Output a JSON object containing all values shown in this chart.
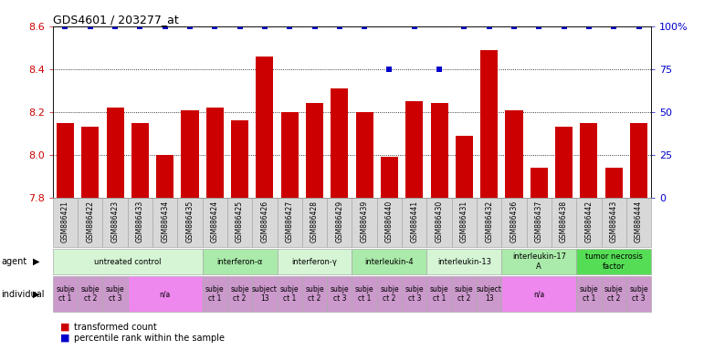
{
  "title": "GDS4601 / 203277_at",
  "samples": [
    "GSM886421",
    "GSM886422",
    "GSM886423",
    "GSM886433",
    "GSM886434",
    "GSM886435",
    "GSM886424",
    "GSM886425",
    "GSM886426",
    "GSM886427",
    "GSM886428",
    "GSM886429",
    "GSM886439",
    "GSM886440",
    "GSM886441",
    "GSM886430",
    "GSM886431",
    "GSM886432",
    "GSM886436",
    "GSM886437",
    "GSM886438",
    "GSM886442",
    "GSM886443",
    "GSM886444"
  ],
  "bar_values": [
    8.15,
    8.13,
    8.22,
    8.15,
    8.0,
    8.21,
    8.22,
    8.16,
    8.46,
    8.2,
    8.24,
    8.31,
    8.2,
    7.99,
    8.25,
    8.24,
    8.09,
    8.49,
    8.21,
    7.94,
    8.13,
    8.15,
    7.94,
    8.15
  ],
  "percentile_values": [
    100,
    100,
    100,
    100,
    100,
    100,
    100,
    100,
    100,
    100,
    100,
    100,
    100,
    75,
    100,
    75,
    100,
    100,
    100,
    100,
    100,
    100,
    100,
    100
  ],
  "ylim_left": [
    7.8,
    8.6
  ],
  "ylim_right": [
    0,
    100
  ],
  "yticks_left": [
    7.8,
    8.0,
    8.2,
    8.4,
    8.6
  ],
  "yticks_right": [
    0,
    25,
    50,
    75,
    100
  ],
  "bar_color": "#cc0000",
  "percentile_color": "#0000cc",
  "bg_color": "#ffffff",
  "grid_color": "#000000",
  "sample_bg": "#d8d8d8",
  "agent_groups": [
    {
      "label": "untreated control",
      "start": 0,
      "end": 6,
      "color": "#d5f5d5"
    },
    {
      "label": "interferon-α",
      "start": 6,
      "end": 9,
      "color": "#aaeaaa"
    },
    {
      "label": "interferon-γ",
      "start": 9,
      "end": 12,
      "color": "#d5f5d5"
    },
    {
      "label": "interleukin-4",
      "start": 12,
      "end": 15,
      "color": "#aaeaaa"
    },
    {
      "label": "interleukin-13",
      "start": 15,
      "end": 18,
      "color": "#d5f5d5"
    },
    {
      "label": "interleukin-17\nA",
      "start": 18,
      "end": 21,
      "color": "#aaeaaa"
    },
    {
      "label": "tumor necrosis\nfactor",
      "start": 21,
      "end": 24,
      "color": "#55dd55"
    }
  ],
  "individual_groups": [
    {
      "label": "subje\nct 1",
      "start": 0,
      "end": 1,
      "color": "#cc99cc"
    },
    {
      "label": "subje\nct 2",
      "start": 1,
      "end": 2,
      "color": "#cc99cc"
    },
    {
      "label": "subje\nct 3",
      "start": 2,
      "end": 3,
      "color": "#cc99cc"
    },
    {
      "label": "n/a",
      "start": 3,
      "end": 6,
      "color": "#ee88ee"
    },
    {
      "label": "subje\nct 1",
      "start": 6,
      "end": 7,
      "color": "#cc99cc"
    },
    {
      "label": "subje\nct 2",
      "start": 7,
      "end": 8,
      "color": "#cc99cc"
    },
    {
      "label": "subject\n13",
      "start": 8,
      "end": 9,
      "color": "#cc99cc"
    },
    {
      "label": "subje\nct 1",
      "start": 9,
      "end": 10,
      "color": "#cc99cc"
    },
    {
      "label": "subje\nct 2",
      "start": 10,
      "end": 11,
      "color": "#cc99cc"
    },
    {
      "label": "subje\nct 3",
      "start": 11,
      "end": 12,
      "color": "#cc99cc"
    },
    {
      "label": "subje\nct 1",
      "start": 12,
      "end": 13,
      "color": "#cc99cc"
    },
    {
      "label": "subje\nct 2",
      "start": 13,
      "end": 14,
      "color": "#cc99cc"
    },
    {
      "label": "subje\nct 3",
      "start": 14,
      "end": 15,
      "color": "#cc99cc"
    },
    {
      "label": "subje\nct 1",
      "start": 15,
      "end": 16,
      "color": "#cc99cc"
    },
    {
      "label": "subje\nct 2",
      "start": 16,
      "end": 17,
      "color": "#cc99cc"
    },
    {
      "label": "subject\n13",
      "start": 17,
      "end": 18,
      "color": "#cc99cc"
    },
    {
      "label": "n/a",
      "start": 18,
      "end": 21,
      "color": "#ee88ee"
    },
    {
      "label": "subje\nct 1",
      "start": 21,
      "end": 22,
      "color": "#cc99cc"
    },
    {
      "label": "subje\nct 2",
      "start": 22,
      "end": 23,
      "color": "#cc99cc"
    },
    {
      "label": "subje\nct 3",
      "start": 23,
      "end": 24,
      "color": "#cc99cc"
    }
  ]
}
